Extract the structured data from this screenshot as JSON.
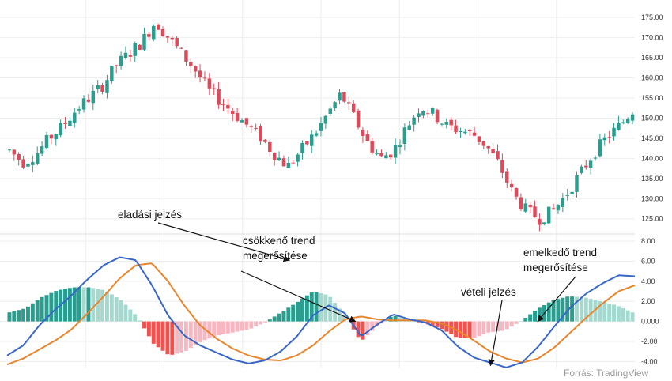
{
  "colors": {
    "up": "#2a9d8f",
    "down": "#dd4a5a",
    "hist_pos_strong": "#2a9d8f",
    "hist_pos_weak": "#a3d9cf",
    "hist_neg_strong": "#ef5350",
    "hist_neg_weak": "#f8b6c0",
    "macd_line": "#3867c8",
    "signal_line": "#e8852d",
    "grid": "#eeeeee"
  },
  "chart_data": {
    "type": "candlestick",
    "title": "",
    "legend": "none",
    "grid": true,
    "price_axis": {
      "range": [
        122,
        177
      ],
      "tick_labels": [
        "175.00",
        "170.00",
        "165.00",
        "160.00",
        "155.00",
        "150.00",
        "145.00",
        "140.00",
        "135.00",
        "130.00",
        "125.00"
      ]
    },
    "macd_axis": {
      "range": [
        -4.6,
        8.4
      ],
      "tick_labels": [
        "8.00",
        "6.00",
        "4.00",
        "2.00",
        "0.000",
        "-2.00",
        "-4.00"
      ]
    },
    "price_path": [
      142,
      139,
      141,
      145,
      148,
      152,
      155,
      158,
      163,
      166,
      169,
      174,
      170,
      166,
      162,
      157,
      154,
      151,
      148,
      145,
      141,
      138,
      142,
      146,
      151,
      156,
      150,
      144,
      140,
      142,
      148,
      153,
      151,
      148,
      147,
      146,
      143,
      138,
      131,
      127,
      125,
      127,
      131,
      136,
      141,
      145,
      148,
      152
    ],
    "macd_path": [
      -3.4,
      -2.4,
      -0.4,
      1.2,
      2.6,
      4.2,
      5.6,
      6.4,
      6.1,
      3.6,
      0.6,
      -1.4,
      -2.4,
      -3.1,
      -3.8,
      -4.2,
      -3.9,
      -3.0,
      -1.5,
      0.6,
      1.6,
      0.8,
      -1.5,
      -0.3,
      0.7,
      0.2,
      -0.1,
      -0.9,
      -2.5,
      -3.6,
      -4.1,
      -4.6,
      -4.1,
      -2.5,
      -0.5,
      1.4,
      2.8,
      3.8,
      4.6,
      4.5
    ],
    "signal_path": [
      -4.3,
      -3.7,
      -2.8,
      -1.9,
      -0.8,
      0.8,
      2.5,
      4.3,
      5.6,
      5.8,
      4.0,
      1.6,
      -0.4,
      -1.7,
      -2.7,
      -3.4,
      -3.8,
      -3.9,
      -3.4,
      -2.4,
      -1.0,
      0.2,
      0.5,
      0.2,
      0.1,
      0.1,
      0.1,
      -0.2,
      -0.9,
      -1.9,
      -3.0,
      -3.7,
      -4.1,
      -3.7,
      -2.6,
      -1.1,
      0.4,
      1.8,
      3.0,
      3.6
    ],
    "annotations": [
      {
        "label": "eladási jelzés",
        "lines": [
          "eladási jelzés"
        ],
        "target": {
          "bar": 0.45,
          "macd": 6.1
        }
      },
      {
        "label": "csökkenő trend megerősítése",
        "lines": [
          "csökkenő trend",
          "megerősítése"
        ],
        "target": {
          "bar": 0.555,
          "macd": 0.0
        }
      },
      {
        "label": "vételi jelzés",
        "lines": [
          "vételi jelzés"
        ],
        "target": {
          "bar": 0.77,
          "macd": -4.4
        }
      },
      {
        "label": "emelkedő trend megerősítése",
        "lines": [
          "emelkedő trend",
          "megerősítése"
        ],
        "target": {
          "bar": 0.845,
          "macd": 0.0
        }
      }
    ],
    "source": "Forrás: TradingView"
  }
}
